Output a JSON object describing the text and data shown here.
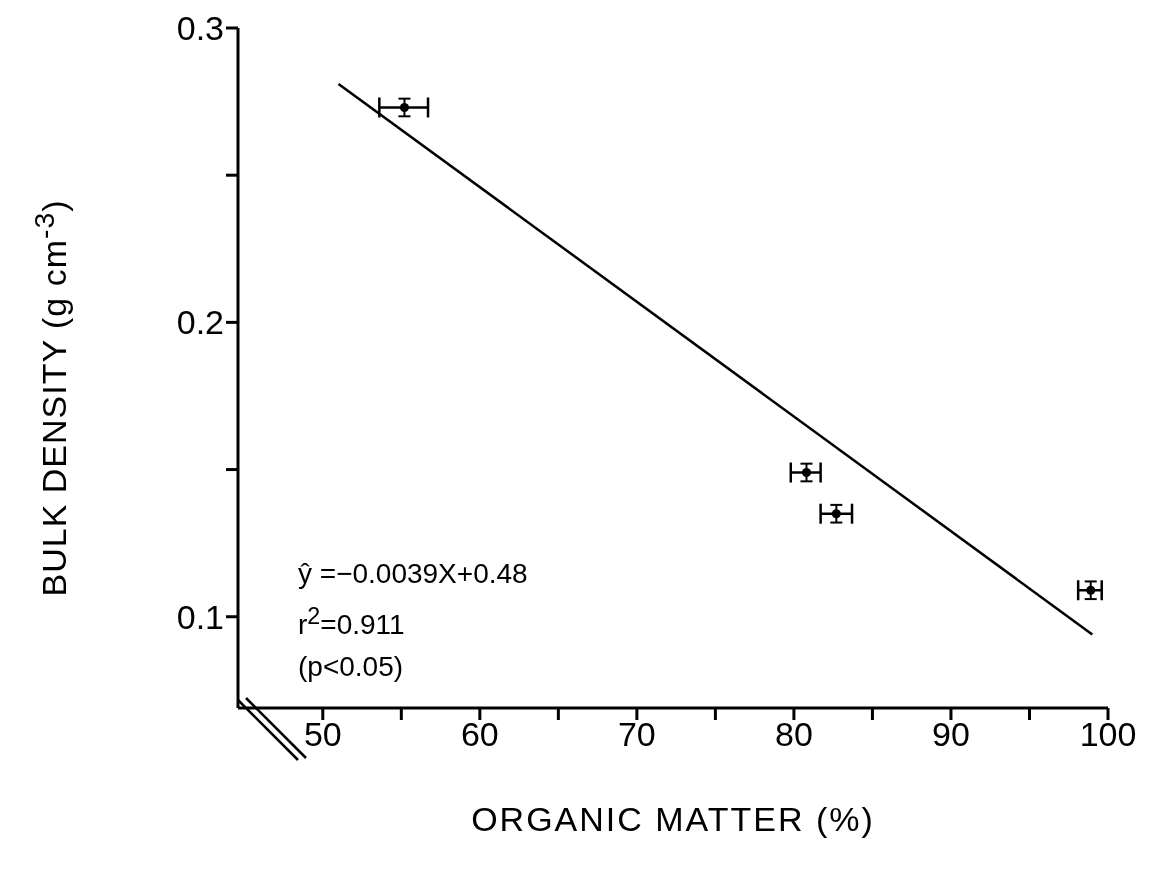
{
  "chart_data": {
    "type": "scatter",
    "xlabel": "ORGANIC MATTER (%)",
    "ylabel": "BULK DENSITY (g cm$^{-3}$)",
    "x": [
      55.2,
      80.8,
      82.7,
      98.9
    ],
    "series": [
      {
        "color": "#000000",
        "values": [
          0.273,
          0.149,
          0.135,
          0.109
        ],
        "errors": [
          0.003,
          0.003,
          0.003,
          0.003
        ],
        "xerrors": [
          [
            53.6,
            56.7
          ],
          [
            79.8,
            81.7
          ],
          [
            81.7,
            83.7
          ],
          [
            98.1,
            99.6
          ]
        ]
      },
      {
        "type": "line",
        "marker": "none",
        "color": "#000000",
        "x": [
          51,
          99
        ],
        "values": [
          0.281,
          0.094
        ]
      }
    ],
    "xlim": [
      44.6,
      100
    ],
    "ylim": [
      0.069,
      0.3
    ],
    "xticks": [
      50,
      {
        "value": 55,
        "label": null
      },
      60,
      {
        "value": 65,
        "label": null
      },
      70,
      {
        "value": 75,
        "label": null
      },
      80,
      {
        "value": 85,
        "label": null
      },
      90,
      {
        "value": 95,
        "label": null
      },
      100
    ],
    "yticks": [
      0.1,
      {
        "value": 0.15,
        "label": null
      },
      0.2,
      {
        "value": 0.25,
        "label": null
      },
      0.3
    ],
    "grid": false,
    "legend": false,
    "marker": "circle",
    "line_style": "solid",
    "annotations": [
      "ŷ =−0.0039X+0.48",
      "r$^{2}$=0.911",
      "(p<0.05)"
    ]
  }
}
